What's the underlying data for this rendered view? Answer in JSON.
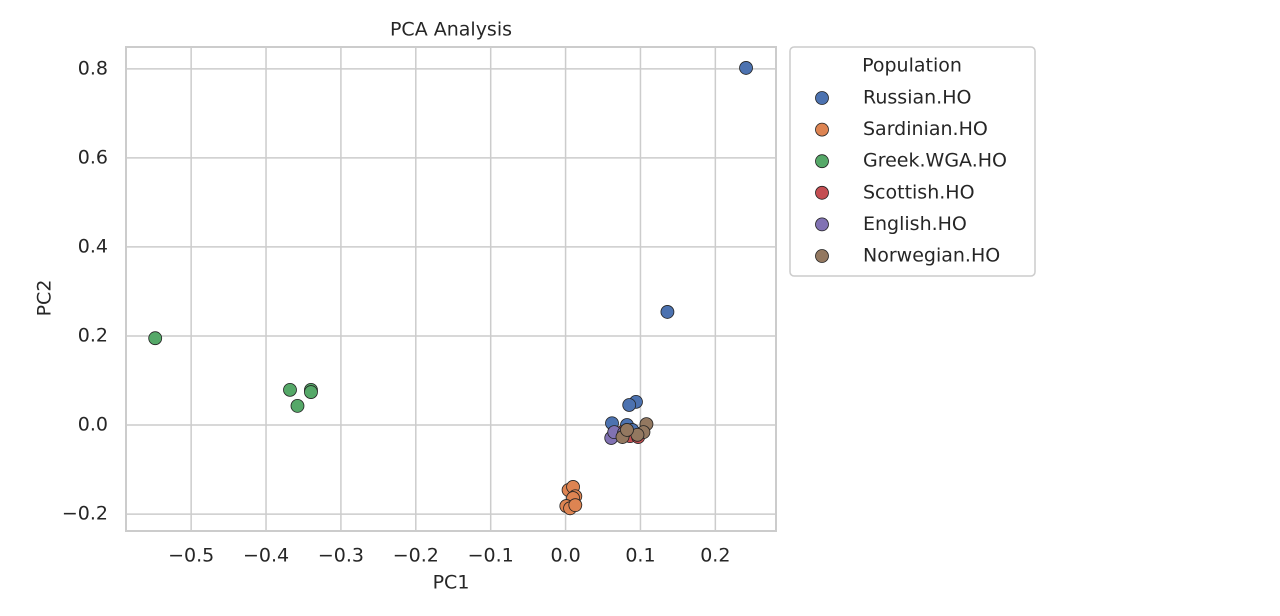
{
  "chart_data": {
    "type": "scatter",
    "title": "PCA Analysis",
    "x_label": "PC1",
    "y_label": "PC2",
    "legend_title": "Population",
    "legend": "outside-upper-right",
    "grid": true,
    "xlim": [
      -0.587,
      0.281
    ],
    "ylim": [
      -0.238,
      0.849
    ],
    "xticks": [
      {
        "value": -0.5,
        "label": "−0.5"
      },
      {
        "value": -0.4,
        "label": "−0.4"
      },
      {
        "value": -0.3,
        "label": "−0.3"
      },
      {
        "value": -0.2,
        "label": "−0.2"
      },
      {
        "value": -0.1,
        "label": "−0.1"
      },
      {
        "value": 0,
        "label": "0.0"
      },
      0.1,
      0.2
    ],
    "yticks": [
      {
        "value": -0.2,
        "label": "−0.2"
      },
      {
        "value": 0,
        "label": "0.0"
      },
      0.2,
      0.4,
      0.6,
      0.8
    ],
    "series": [
      {
        "name": "Russian.HO",
        "color": "#4c72b0",
        "x": [
          0.241,
          0.136,
          0.094,
          0.085,
          0.062,
          0.082,
          0.089
        ],
        "y": [
          0.802,
          0.254,
          0.052,
          0.045,
          0.004,
          0.0,
          -0.011
        ]
      },
      {
        "name": "Sardinian.HO",
        "color": "#dd8452",
        "x": [
          0.004,
          0.01,
          0.013,
          0.01,
          0.001,
          0.006,
          0.013
        ],
        "y": [
          -0.146,
          -0.139,
          -0.16,
          -0.164,
          -0.182,
          -0.187,
          -0.18
        ]
      },
      {
        "name": "Greek.WGA.HO",
        "color": "#55a868",
        "x": [
          -0.548,
          -0.368,
          -0.34,
          -0.34,
          -0.358
        ],
        "y": [
          0.195,
          0.079,
          0.079,
          0.074,
          0.043
        ]
      },
      {
        "name": "Scottish.HO",
        "color": "#c44e52",
        "x": [
          0.086,
          0.097,
          0.076,
          0.068
        ],
        "y": [
          -0.025,
          -0.027,
          -0.016,
          -0.02
        ]
      },
      {
        "name": "English.HO",
        "color": "#8172b3",
        "x": [
          0.061,
          0.065,
          0.078
        ],
        "y": [
          -0.029,
          -0.016,
          -0.018
        ]
      },
      {
        "name": "Norwegian.HO",
        "color": "#937860",
        "x": [
          0.108,
          0.104,
          0.096,
          0.076,
          0.082
        ],
        "y": [
          0.002,
          -0.016,
          -0.022,
          -0.027,
          -0.011
        ]
      }
    ]
  }
}
